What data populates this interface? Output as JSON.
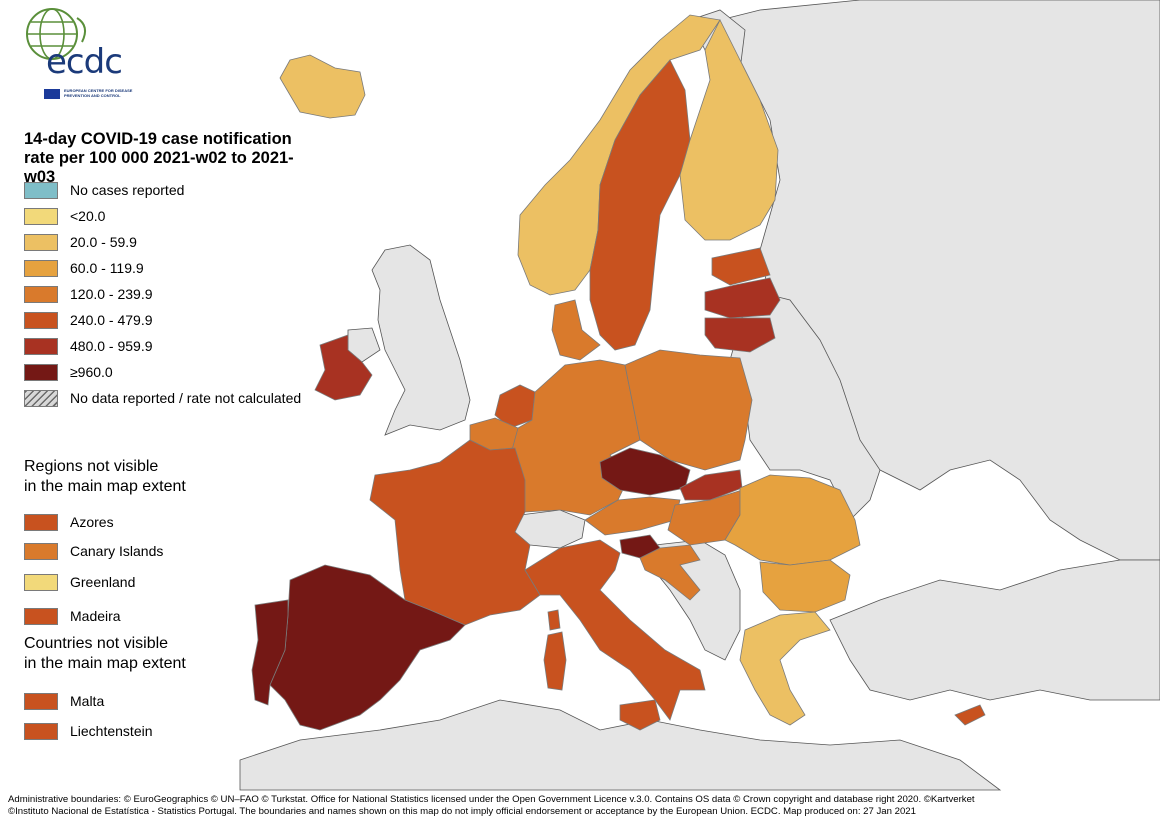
{
  "logo": {
    "wordmark": "ecdc",
    "subtitle": "EUROPEAN CENTRE FOR DISEASE PREVENTION AND CONTROL"
  },
  "legend": {
    "title_line1": "14-day COVID-19 case notification",
    "title_line2": "rate per 100 000 2021-w02 to 2021-w03",
    "items": [
      {
        "label": "No cases reported",
        "color": "#7fbec8"
      },
      {
        "label": "<20.0",
        "color": "#f2d97a"
      },
      {
        "label": "20.0 - 59.9",
        "color": "#ecc063"
      },
      {
        "label": "60.0 - 119.9",
        "color": "#e6a23f"
      },
      {
        "label": "120.0 - 239.9",
        "color": "#d97a2c"
      },
      {
        "label": "240.0 - 479.9",
        "color": "#c8521f"
      },
      {
        "label": "480.0 - 959.9",
        "color": "#a83222"
      },
      {
        "label": "≥960.0",
        "color": "#741815"
      },
      {
        "label": "No data reported / rate not calculated",
        "color": "hatch"
      }
    ]
  },
  "regions_section": {
    "title": "Regions not visible\nin the main map extent",
    "items": [
      {
        "label": "Azores",
        "color": "#c8521f"
      },
      {
        "label": "Canary Islands",
        "color": "#d97a2c"
      },
      {
        "label": "Greenland",
        "color": "#f2d97a"
      },
      {
        "label": "Madeira",
        "color": "#c8521f"
      }
    ]
  },
  "countries_section": {
    "title": "Countries not visible\nin the main map extent",
    "items": [
      {
        "label": "Malta",
        "color": "#c8521f"
      },
      {
        "label": "Liechtenstein",
        "color": "#c8521f"
      }
    ]
  },
  "footer": {
    "line1": "Administrative boundaries: © EuroGeographics © UN–FAO © Turkstat. Office for National Statistics licensed under the Open Government Licence v.3.0. Contains OS data © Crown copyright and database right 2020. ©Kartverket",
    "line2": "©Instituto Nacional de Estatística - Statistics Portugal. The boundaries and names shown on this map do not imply official endorsement or acceptance by the European Union. ECDC. Map produced on: 27 Jan 2021"
  },
  "map": {
    "non_eu_color": "#e5e5e5",
    "sea_color": "#ffffff",
    "regions": [
      {
        "name": "Spain",
        "band": "≥960.0"
      },
      {
        "name": "Portugal",
        "band": "≥960.0"
      },
      {
        "name": "Czechia",
        "band": "≥960.0"
      },
      {
        "name": "Slovenia",
        "band": "≥960.0"
      },
      {
        "name": "Ireland",
        "band": "480.0 - 959.9"
      },
      {
        "name": "Latvia",
        "band": "480.0 - 959.9"
      },
      {
        "name": "Lithuania",
        "band": "480.0 - 959.9"
      },
      {
        "name": "Slovakia",
        "band": "480.0 - 959.9"
      },
      {
        "name": "France",
        "band": "240.0 - 479.9"
      },
      {
        "name": "Italy",
        "band": "240.0 - 479.9"
      },
      {
        "name": "Sweden",
        "band": "240.0 - 479.9"
      },
      {
        "name": "Netherlands",
        "band": "240.0 - 479.9"
      },
      {
        "name": "Estonia",
        "band": "240.0 - 479.9"
      },
      {
        "name": "Cyprus",
        "band": "240.0 - 479.9"
      },
      {
        "name": "Germany",
        "band": "120.0 - 239.9"
      },
      {
        "name": "Poland",
        "band": "120.0 - 239.9"
      },
      {
        "name": "Austria",
        "band": "120.0 - 239.9"
      },
      {
        "name": "Hungary",
        "band": "120.0 - 239.9"
      },
      {
        "name": "Croatia",
        "band": "120.0 - 239.9"
      },
      {
        "name": "Belgium",
        "band": "120.0 - 239.9"
      },
      {
        "name": "Denmark",
        "band": "120.0 - 239.9"
      },
      {
        "name": "Romania",
        "band": "60.0 - 119.9"
      },
      {
        "name": "Bulgaria",
        "band": "60.0 - 119.9"
      },
      {
        "name": "Norway",
        "band": "20.0 - 59.9"
      },
      {
        "name": "Finland",
        "band": "20.0 - 59.9"
      },
      {
        "name": "Iceland",
        "band": "20.0 - 59.9"
      },
      {
        "name": "Greece",
        "band": "20.0 - 59.9"
      }
    ]
  }
}
